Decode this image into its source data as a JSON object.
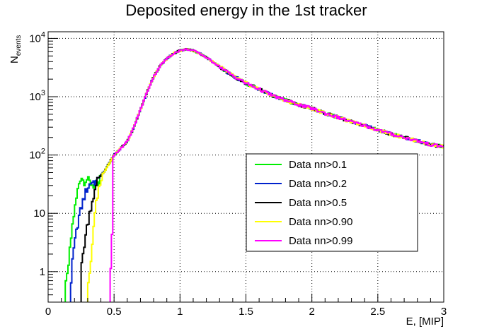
{
  "chart_data": {
    "type": "line",
    "title": "Deposited energy in the 1st tracker",
    "xlabel": "E, [MIP]",
    "ylabel": "N",
    "ylabel_sub": "events",
    "xlim": [
      0,
      3
    ],
    "ylim": [
      0.3,
      13000
    ],
    "yscale": "log",
    "grid": true,
    "legend_position": "right",
    "x_ticks": [
      0,
      0.5,
      1,
      1.5,
      2,
      2.5,
      3
    ],
    "x_tick_labels": [
      "0",
      "0.5",
      "1",
      "1.5",
      "2",
      "2.5",
      "3"
    ],
    "y_ticks": [
      1,
      10,
      100,
      1000,
      10000
    ],
    "y_tick_labels": [
      {
        "base": "1",
        "exp": ""
      },
      {
        "base": "10",
        "exp": ""
      },
      {
        "base": "10",
        "exp": "2"
      },
      {
        "base": "10",
        "exp": "3"
      },
      {
        "base": "10",
        "exp": "4"
      }
    ],
    "series": [
      {
        "name": "Data nn>0.1",
        "color": "#00ee00",
        "threshold": 0.13,
        "low_points": [
          [
            0.13,
            0.5
          ],
          [
            0.15,
            1.0
          ],
          [
            0.17,
            3
          ],
          [
            0.19,
            8
          ],
          [
            0.21,
            15
          ],
          [
            0.23,
            30
          ],
          [
            0.25,
            45
          ],
          [
            0.27,
            35
          ],
          [
            0.29,
            40
          ],
          [
            0.31,
            35
          ],
          [
            0.33,
            32
          ],
          [
            0.35,
            30
          ],
          [
            0.37,
            30
          ],
          [
            0.39,
            30
          ]
        ]
      },
      {
        "name": "Data nn>0.2",
        "color": "#0022cc",
        "threshold": 0.17,
        "low_points": [
          [
            0.17,
            0.5
          ],
          [
            0.19,
            2
          ],
          [
            0.21,
            4
          ],
          [
            0.23,
            8
          ],
          [
            0.25,
            12
          ],
          [
            0.27,
            18
          ],
          [
            0.29,
            25
          ],
          [
            0.31,
            30
          ],
          [
            0.33,
            35
          ],
          [
            0.35,
            35
          ],
          [
            0.37,
            35
          ]
        ]
      },
      {
        "name": "Data nn>0.5",
        "color": "#000000",
        "threshold": 0.25,
        "low_points": [
          [
            0.25,
            1
          ],
          [
            0.27,
            2.5
          ],
          [
            0.29,
            5
          ],
          [
            0.31,
            9
          ],
          [
            0.33,
            15
          ],
          [
            0.35,
            22
          ],
          [
            0.37,
            30
          ]
        ]
      },
      {
        "name": "Data nn>0.90",
        "color": "#ffff00",
        "threshold": 0.3,
        "low_points": [
          [
            0.3,
            0.5
          ],
          [
            0.32,
            1
          ],
          [
            0.34,
            5
          ],
          [
            0.36,
            12
          ],
          [
            0.38,
            25
          ],
          [
            0.4,
            35
          ],
          [
            0.42,
            50
          ]
        ]
      },
      {
        "name": "Data nn>0.99",
        "color": "#ff00ff",
        "threshold": 0.47,
        "low_points": [
          [
            0.47,
            0.5
          ],
          [
            0.49,
            10
          ]
        ]
      }
    ],
    "common_curve": [
      [
        0.38,
        40
      ],
      [
        0.42,
        50
      ],
      [
        0.46,
        70
      ],
      [
        0.5,
        100
      ],
      [
        0.55,
        130
      ],
      [
        0.6,
        170
      ],
      [
        0.65,
        300
      ],
      [
        0.7,
        600
      ],
      [
        0.75,
        1200
      ],
      [
        0.8,
        2200
      ],
      [
        0.85,
        3400
      ],
      [
        0.9,
        4500
      ],
      [
        0.95,
        5500
      ],
      [
        1.0,
        6200
      ],
      [
        1.05,
        6500
      ],
      [
        1.1,
        6200
      ],
      [
        1.15,
        5500
      ],
      [
        1.2,
        4700
      ],
      [
        1.3,
        3300
      ],
      [
        1.4,
        2300
      ],
      [
        1.5,
        1700
      ],
      [
        1.6,
        1350
      ],
      [
        1.7,
        1050
      ],
      [
        1.8,
        870
      ],
      [
        1.9,
        730
      ],
      [
        2.0,
        630
      ],
      [
        2.1,
        520
      ],
      [
        2.2,
        440
      ],
      [
        2.3,
        370
      ],
      [
        2.4,
        320
      ],
      [
        2.5,
        270
      ],
      [
        2.6,
        230
      ],
      [
        2.7,
        200
      ],
      [
        2.8,
        175
      ],
      [
        2.9,
        150
      ],
      [
        3.0,
        140
      ]
    ]
  }
}
